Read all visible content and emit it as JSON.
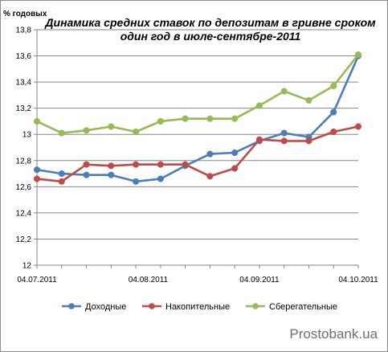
{
  "chart_data": {
    "type": "line",
    "title_lines": [
      "Динамика средних ставок по депозитам в гривне сроком",
      "один год в июле-сентябре-2011"
    ],
    "ylabel": "% годовых",
    "ylim": [
      12,
      13.8
    ],
    "yticks": [
      12,
      12.2,
      12.4,
      12.6,
      12.8,
      13,
      13.2,
      13.4,
      13.6,
      13.8
    ],
    "ytick_labels": [
      "12",
      "12,2",
      "12,4",
      "12,6",
      "12,8",
      "13",
      "13,2",
      "13,4",
      "13,6",
      "13,8"
    ],
    "x_tick_labels": [
      {
        "label": "04.07.2011",
        "index": 0
      },
      {
        "label": "04.08.2011",
        "index": 4.5
      },
      {
        "label": "04.09.2011",
        "index": 9
      },
      {
        "label": "04.10.2011",
        "index": 13
      }
    ],
    "point_count": 14,
    "legend_position": "bottom",
    "grid": "horizontal",
    "series": [
      {
        "name": "Доходные",
        "color": "#4a7ebb",
        "values": [
          12.73,
          12.7,
          12.69,
          12.69,
          12.64,
          12.66,
          12.76,
          12.85,
          12.86,
          12.95,
          13.01,
          12.98,
          13.17,
          13.6
        ]
      },
      {
        "name": "Накопительные",
        "color": "#be4b48",
        "values": [
          12.66,
          12.64,
          12.77,
          12.76,
          12.77,
          12.77,
          12.77,
          12.68,
          12.74,
          12.96,
          12.95,
          12.95,
          13.02,
          13.06
        ]
      },
      {
        "name": "Сберегательные",
        "color": "#98b954",
        "values": [
          13.1,
          13.01,
          13.03,
          13.06,
          13.02,
          13.1,
          13.12,
          13.12,
          13.12,
          13.22,
          13.33,
          13.26,
          13.37,
          13.61
        ]
      }
    ]
  },
  "watermark": "Prostobank.ua"
}
